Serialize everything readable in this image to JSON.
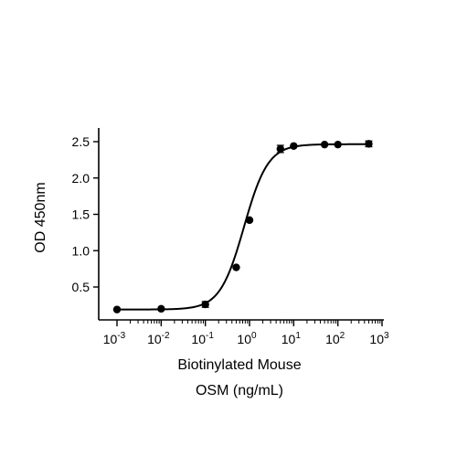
{
  "chart_data": {
    "type": "scatter",
    "title": "",
    "xlabel_lines": [
      "Biotinylated Mouse",
      "OSM (ng/mL)"
    ],
    "ylabel": "OD 450nm",
    "x_scale": "log",
    "xlim": [
      0.001,
      1000
    ],
    "ylim": [
      0.15,
      2.6
    ],
    "x_ticks": [
      {
        "value": 0.001,
        "base": "10",
        "exp": "-3"
      },
      {
        "value": 0.01,
        "base": "10",
        "exp": "-2"
      },
      {
        "value": 0.1,
        "base": "10",
        "exp": "-1"
      },
      {
        "value": 1,
        "base": "10",
        "exp": "0"
      },
      {
        "value": 10,
        "base": "10",
        "exp": "1"
      },
      {
        "value": 100,
        "base": "10",
        "exp": "2"
      },
      {
        "value": 1000,
        "base": "10",
        "exp": "3"
      }
    ],
    "y_ticks": [
      {
        "value": 0.5,
        "label": "0.5"
      },
      {
        "value": 1.0,
        "label": "1.0"
      },
      {
        "value": 1.5,
        "label": "1.5"
      },
      {
        "value": 2.0,
        "label": "2.0"
      },
      {
        "value": 2.5,
        "label": "2.5"
      }
    ],
    "grid": false,
    "legend": "none",
    "series": [
      {
        "x": [
          0.001,
          0.01,
          0.1,
          0.5,
          1,
          5,
          10,
          50,
          100,
          500
        ],
        "y": [
          0.19,
          0.2,
          0.26,
          0.77,
          1.42,
          2.4,
          2.44,
          2.46,
          2.46,
          2.47
        ],
        "err": [
          0.01,
          0.01,
          0.04,
          0.02,
          0.02,
          0.05,
          0.02,
          0.01,
          0.01,
          0.04
        ]
      }
    ],
    "fit_curve": {
      "model": "4PL",
      "bottom": 0.19,
      "top": 2.465,
      "ec50": 0.75,
      "hill": 1.6
    }
  }
}
